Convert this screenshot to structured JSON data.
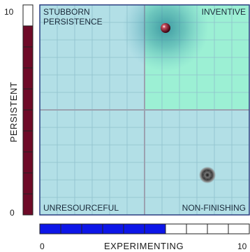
{
  "chart_data": {
    "type": "scatter",
    "title": "",
    "xlabel": "EXPERIMENTING",
    "ylabel": "PERSISTENT",
    "xlim": [
      0,
      10
    ],
    "ylim": [
      0,
      10
    ],
    "x_ticks": [
      "0",
      "10"
    ],
    "y_ticks": [
      "0",
      "10"
    ],
    "quadrants": {
      "top_left": "STUBBORN\nPERSISTENCE",
      "top_right": "INVENTIVE",
      "bottom_left": "UNRESOURCEFUL",
      "bottom_right": "NON-FINISHING"
    },
    "x_meter_value": 6,
    "y_meter_value": 9,
    "points": [
      {
        "x": 6.0,
        "y": 8.9
      },
      {
        "x": 8.0,
        "y": 1.9
      }
    ],
    "grid": true
  },
  "colors": {
    "plot_bg": "#b2dfe6",
    "highlight_quadrant": "#9cf0d4",
    "grid_minor": "#8fc0cc",
    "grid_major": "#9ba2b0",
    "frame": "#2b3f80",
    "x_meter_fill": "#0d16e8",
    "y_meter_fill": "#6e0a28",
    "meter_empty": "#ffffff",
    "halo": "#2f8f9f",
    "point_top": "#7a1020",
    "point_bottom": "#444444"
  }
}
